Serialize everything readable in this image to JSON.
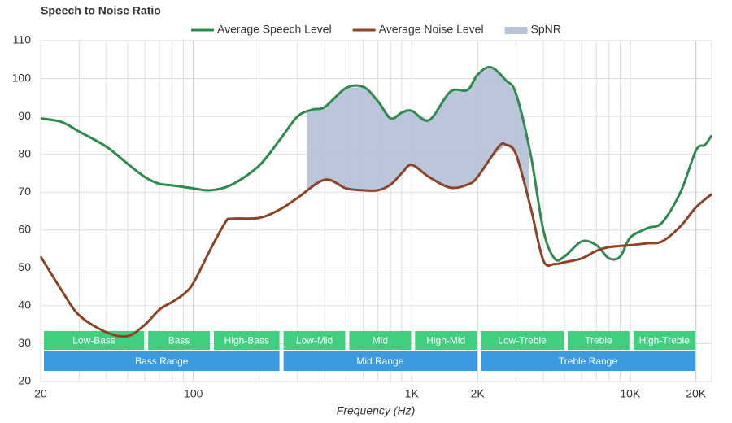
{
  "chart_data": {
    "type": "line",
    "title": "Speech to Noise Ratio",
    "x_label": "Frequency (Hz)",
    "log_x": true,
    "grid": true,
    "legend": "top",
    "xlim": [
      20,
      23600
    ],
    "ylim": [
      20,
      110
    ],
    "xticks": [
      20,
      100,
      {
        "value": 1000,
        "label": "1K"
      },
      {
        "value": 2000,
        "label": "2K"
      },
      {
        "value": 10000,
        "label": "10K"
      },
      {
        "value": 20000,
        "label": "20K"
      }
    ],
    "yticks": [
      20,
      30,
      40,
      50,
      60,
      70,
      80,
      90,
      100,
      110
    ],
    "series": [
      {
        "name": "Average Speech Level",
        "color": "#2e8b4e",
        "x": [
          20,
          25,
          30,
          40,
          50,
          60,
          70,
          80,
          100,
          120,
          150,
          200,
          250,
          300,
          350,
          400,
          500,
          600,
          700,
          800,
          900,
          1000,
          1200,
          1500,
          1800,
          2000,
          2300,
          2700,
          3000,
          3500,
          4000,
          4500,
          5000,
          6000,
          7000,
          8000,
          9000,
          10000,
          12000,
          14000,
          17000,
          20000,
          22000,
          23600
        ],
        "values": [
          89.5,
          88.5,
          86,
          82,
          77.5,
          74,
          72.2,
          71.8,
          71,
          70.5,
          72,
          77,
          84,
          90,
          91.8,
          92.5,
          97.5,
          97.8,
          94,
          89.5,
          91,
          91.5,
          89,
          96.5,
          97,
          101,
          103,
          99.5,
          96,
          80,
          60,
          52.5,
          53,
          57,
          56,
          52.5,
          53,
          58,
          60.5,
          62,
          70,
          81,
          82.5,
          85
        ]
      },
      {
        "name": "Average Noise Level",
        "color": "#8d4426",
        "x": [
          20,
          25,
          30,
          40,
          50,
          60,
          70,
          80,
          90,
          100,
          120,
          140,
          150,
          200,
          250,
          300,
          400,
          500,
          600,
          700,
          800,
          900,
          1000,
          1200,
          1500,
          1800,
          2000,
          2500,
          2700,
          3000,
          3500,
          4000,
          4500,
          5000,
          6000,
          7000,
          8000,
          10000,
          12000,
          14000,
          17000,
          20000,
          23600
        ],
        "values": [
          53,
          44,
          37.5,
          33,
          32,
          35,
          39,
          41,
          43,
          46,
          55,
          62,
          63,
          63.2,
          65.5,
          68.5,
          73.3,
          71,
          70.5,
          70.5,
          72,
          75,
          77.2,
          74,
          71.2,
          72,
          74,
          82,
          82.5,
          80,
          66,
          52,
          51,
          51.5,
          52.5,
          54.5,
          55.5,
          56,
          56.5,
          57,
          61,
          66,
          69.5
        ]
      },
      {
        "name": "SpNR",
        "color": "#b8c3d8",
        "range": [
          330,
          3430
        ]
      }
    ],
    "bands": [
      {
        "label": "Low-Bass",
        "range": [
          20,
          60
        ],
        "color": "#3ecf7f"
      },
      {
        "label": "Bass",
        "range": [
          60,
          120
        ],
        "color": "#3ecf7f"
      },
      {
        "label": "High-Bass",
        "range": [
          120,
          250
        ],
        "color": "#3ecf7f"
      },
      {
        "label": "Low-Mid",
        "range": [
          250,
          500
        ],
        "color": "#3ecf7f"
      },
      {
        "label": "Mid",
        "range": [
          500,
          1000
        ],
        "color": "#3ecf7f"
      },
      {
        "label": "High-Mid",
        "range": [
          1000,
          2000
        ],
        "color": "#3ecf7f"
      },
      {
        "label": "Low-Treble",
        "range": [
          2000,
          5000
        ],
        "color": "#3ecf7f"
      },
      {
        "label": "Treble",
        "range": [
          5000,
          10000
        ],
        "color": "#3ecf7f"
      },
      {
        "label": "High-Treble",
        "range": [
          10000,
          20000
        ],
        "color": "#3ecf7f"
      }
    ],
    "ranges": [
      {
        "label": "Bass Range",
        "range": [
          20,
          250
        ],
        "color": "#3a9be2"
      },
      {
        "label": "Mid Range",
        "range": [
          250,
          2000
        ],
        "color": "#3a9be2"
      },
      {
        "label": "Treble Range",
        "range": [
          2000,
          20000
        ],
        "color": "#3a9be2"
      }
    ]
  }
}
